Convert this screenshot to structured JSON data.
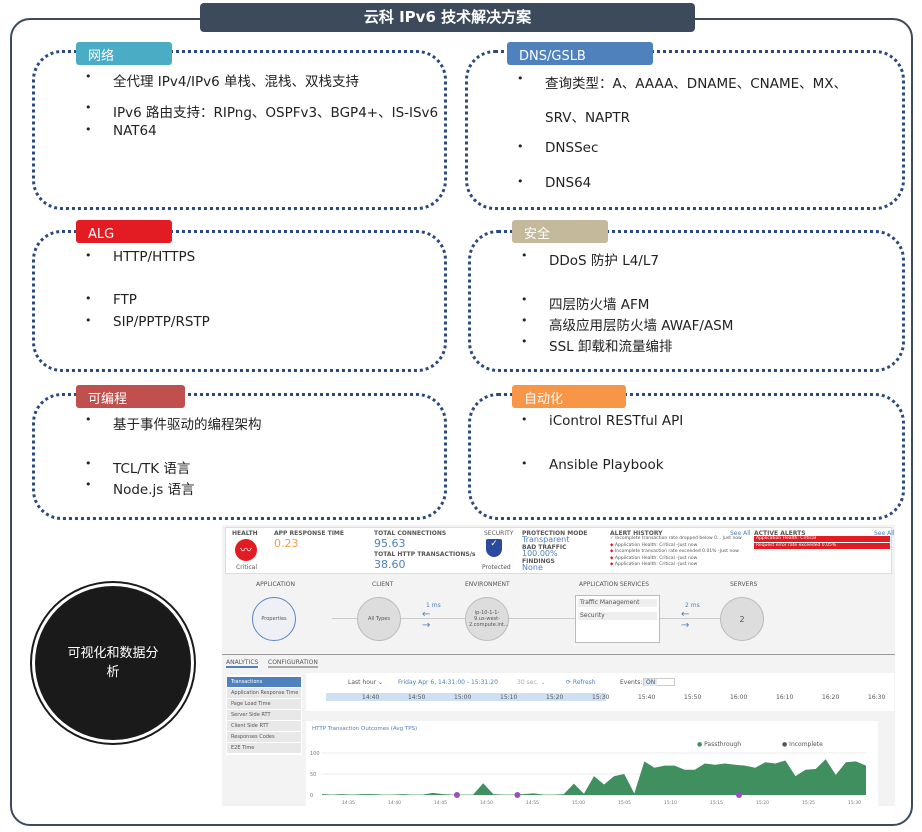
{
  "title": "云科 IPv6 技术解决方案",
  "sections": [
    {
      "tag": "网络",
      "color": "#4bacc6",
      "items": [
        "全代理 IPv4/IPv6 单栈、混栈、双栈支持",
        "IPv6 路由支持：RIPng、OSPFv3、BGP4+、IS-ISv6",
        "NAT64"
      ]
    },
    {
      "tag": "DNS/GSLB",
      "color": "#4f81bd",
      "items": [
        "查询类型：A、AAAA、DNAME、CNAME、MX、",
        "SRV、NAPTR",
        "DNSSec",
        "DNS64"
      ]
    },
    {
      "tag": "ALG",
      "color": "#e31b23",
      "items": [
        "HTTP/HTTPS",
        "FTP",
        "SIP/PPTP/RSTP"
      ]
    },
    {
      "tag": "安全",
      "color": "#c4b99a",
      "items": [
        "DDoS 防护 L4/L7",
        "四层防火墙 AFM",
        "高级应用层防火墙 AWAF/ASM",
        "SSL 卸载和流量编排"
      ]
    },
    {
      "tag": "可编程",
      "color": "#c0504d",
      "items": [
        "基于事件驱动的编程架构",
        "TCL/TK 语言",
        "Node.js 语言"
      ]
    },
    {
      "tag": "自动化",
      "color": "#f79646",
      "items": [
        "iControl RESTful API",
        "Ansible Playbook"
      ]
    }
  ],
  "circle_label": "可视化和数据分析",
  "dashboard": {
    "health": {
      "label": "HEALTH",
      "status": "Critical"
    },
    "app_response": {
      "label": "APP RESPONSE TIME",
      "value": "0.23"
    },
    "connections": {
      "label": "TOTAL CONNECTIONS",
      "value": "95.63",
      "http_label": "TOTAL HTTP TRANSACTIONS/s",
      "http_value": "38.60"
    },
    "security": {
      "label": "SECURITY",
      "status": "Protected"
    },
    "protection": {
      "mode_label": "PROTECTION MODE",
      "mode": "Transparent",
      "bad_label": "BAD TRAFFIC",
      "bad": "100.00%",
      "findings_label": "FINDINGS",
      "findings": "None"
    },
    "alert_history": {
      "label": "ALERT HISTORY",
      "see_all": "See All",
      "items": [
        "Incomplete transaction rate dropped below 0... Just now",
        "Application Health: Critical -Just now",
        "Incomplete transaction rate exceeded 0.01% -Just now",
        "Application Health: Critical -Just now",
        "Application Health: Critical -Just now"
      ]
    },
    "active_alerts": {
      "label": "ACTIVE ALERTS",
      "see_all": "See All",
      "items": [
        "Application Health: Critical",
        "Request error rate exceeded 0.05%"
      ]
    },
    "flow": {
      "application": "APPLICATION",
      "properties": "Properties",
      "client": "CLIENT",
      "all_types": "All Types",
      "environment": "ENVIRONMENT",
      "env_node": "ip-10-1-1-9.us-west-2.compute.int...",
      "app_services": "APPLICATION SERVICES",
      "traffic": "Traffic Management",
      "security": "Security",
      "servers": "SERVERS",
      "servers_count": "2",
      "latency1": "1 ms",
      "latency2": "2 ms"
    },
    "tabs": [
      "ANALYTICS",
      "CONFIGURATION"
    ],
    "menu": [
      "Transactions",
      "Application Response Time",
      "Page Load Time",
      "Server Side RTT",
      "Client Side RTT",
      "Responses Codes",
      "E2E Time"
    ],
    "toolbar": {
      "range": "Last hour ⌄",
      "dates": "Friday Apr 6, 14:31:00 - 15:31:20",
      "interval": "30 sec. ⌄",
      "refresh": "⟳ Refresh",
      "events": "Events:",
      "on": "ON"
    },
    "timeline": [
      "14:40",
      "14:50",
      "15:00",
      "15:10",
      "15:20",
      "15:30",
      "15:40",
      "15:50",
      "16:00",
      "16:10",
      "16:20",
      "16:30"
    ]
  },
  "chart_data": {
    "type": "area",
    "title": "HTTP Transaction Outcomes (Avg TPS)",
    "legend": [
      "Passthrough",
      "Incomplete"
    ],
    "colors": {
      "Passthrough": "#3f8f5f",
      "Incomplete": "#111111"
    },
    "yticks": [
      "0",
      "50",
      "100"
    ],
    "ylim": [
      0,
      100
    ],
    "xticks": [
      "14:35",
      "14:40",
      "14:45",
      "14:50",
      "14:55",
      "15:00",
      "15:05",
      "15:10",
      "15:15",
      "15:20",
      "15:25",
      "15:30"
    ],
    "values": [
      2,
      1,
      2,
      1,
      2,
      2,
      1,
      1,
      2,
      1,
      1,
      5,
      2,
      1,
      1,
      1,
      28,
      2,
      1,
      1,
      2,
      4,
      1,
      1,
      2,
      27,
      3,
      45,
      25,
      45,
      50,
      4,
      80,
      65,
      70,
      70,
      60,
      60,
      75,
      72,
      75,
      72,
      70,
      65,
      78,
      75,
      82,
      45,
      60,
      62,
      85,
      48,
      78,
      80,
      70
    ]
  }
}
